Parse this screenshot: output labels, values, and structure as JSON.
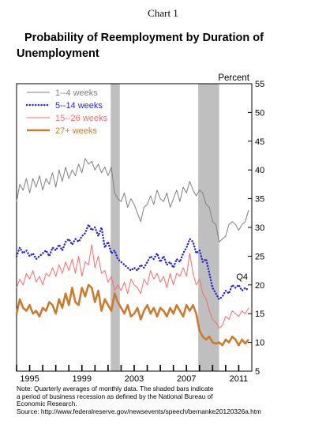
{
  "page": {
    "chart_label": "Chart 1",
    "title_line1": "Probability of Reemployment by Duration of",
    "title_line2": "Unemployment",
    "note_line1": "Note: Quarterly averages of monthly data.  The shaded bars indicate",
    "note_line2": "a period of business recession as defined by the National Bureau of",
    "note_line3": "Economic Research.",
    "source": "Source: http://www.federalreserve.gov/newsevents/speech/bernanke20120326a.htm"
  },
  "chart_data": {
    "type": "line",
    "title": "Probability of Reemployment by Duration of Unemployment",
    "ylabel": "Percent",
    "ylim": [
      5,
      55
    ],
    "yticks": [
      5,
      10,
      15,
      20,
      25,
      30,
      35,
      40,
      45,
      50,
      55
    ],
    "xlim": [
      1994.0,
      2012.0
    ],
    "xtick_labels": [
      {
        "year": 1995,
        "label": "1995"
      },
      {
        "year": 1999,
        "label": "1999"
      },
      {
        "year": 2003,
        "label": "2003"
      },
      {
        "year": 2007,
        "label": "2007"
      },
      {
        "year": 2011,
        "label": "2011"
      }
    ],
    "recessions": [
      [
        2001.2,
        2001.9
      ],
      [
        2007.9,
        2009.5
      ]
    ],
    "annotation": "Q4",
    "legend_position": "top-left",
    "colors": {
      "series1": "#7f7f7f",
      "series2": "#1f1fe0",
      "series3": "#ff6a6a",
      "series4": "#cc7a2e",
      "recession": "#bfbfbf"
    },
    "series": [
      {
        "name": "1--4 weeks",
        "color": "#7f7f7f",
        "style": "solid",
        "x": [
          1994.0,
          1994.25,
          1994.5,
          1994.75,
          1995.0,
          1995.25,
          1995.5,
          1995.75,
          1996.0,
          1996.25,
          1996.5,
          1996.75,
          1997.0,
          1997.25,
          1997.5,
          1997.75,
          1998.0,
          1998.25,
          1998.5,
          1998.75,
          1999.0,
          1999.25,
          1999.5,
          1999.75,
          2000.0,
          2000.25,
          2000.5,
          2000.75,
          2001.0,
          2001.25,
          2001.5,
          2001.75,
          2002.0,
          2002.25,
          2002.5,
          2002.75,
          2003.0,
          2003.25,
          2003.5,
          2003.75,
          2004.0,
          2004.25,
          2004.5,
          2004.75,
          2005.0,
          2005.25,
          2005.5,
          2005.75,
          2006.0,
          2006.25,
          2006.5,
          2006.75,
          2007.0,
          2007.25,
          2007.5,
          2007.75,
          2008.0,
          2008.25,
          2008.5,
          2008.75,
          2009.0,
          2009.25,
          2009.5,
          2009.75,
          2010.0,
          2010.25,
          2010.5,
          2010.75,
          2011.0,
          2011.25,
          2011.5,
          2011.75
        ],
        "values": [
          34.5,
          37.5,
          36.5,
          38.5,
          36.0,
          38.5,
          37.0,
          39.0,
          36.5,
          38.5,
          37.5,
          39.5,
          37.0,
          40.0,
          38.0,
          40.5,
          38.5,
          40.0,
          39.0,
          41.0,
          39.5,
          42.0,
          41.0,
          41.5,
          40.0,
          41.0,
          39.5,
          40.5,
          39.0,
          40.5,
          36.0,
          35.0,
          34.5,
          36.0,
          33.5,
          35.0,
          34.0,
          32.5,
          31.0,
          33.5,
          34.0,
          35.5,
          34.0,
          36.5,
          35.0,
          34.5,
          36.0,
          33.5,
          35.0,
          36.5,
          34.5,
          37.0,
          36.0,
          38.0,
          36.5,
          35.5,
          36.5,
          36.0,
          34.0,
          33.5,
          31.0,
          30.5,
          27.5,
          28.0,
          28.5,
          30.5,
          31.0,
          30.5,
          29.5,
          30.5,
          31.0,
          33.0
        ]
      },
      {
        "name": "5--14 weeks",
        "color": "#1f1fe0",
        "style": "dotted",
        "x": [
          1994.0,
          1994.25,
          1994.5,
          1994.75,
          1995.0,
          1995.25,
          1995.5,
          1995.75,
          1996.0,
          1996.25,
          1996.5,
          1996.75,
          1997.0,
          1997.25,
          1997.5,
          1997.75,
          1998.0,
          1998.25,
          1998.5,
          1998.75,
          1999.0,
          1999.25,
          1999.5,
          1999.75,
          2000.0,
          2000.25,
          2000.5,
          2000.75,
          2001.0,
          2001.25,
          2001.5,
          2001.75,
          2002.0,
          2002.25,
          2002.5,
          2002.75,
          2003.0,
          2003.25,
          2003.5,
          2003.75,
          2004.0,
          2004.25,
          2004.5,
          2004.75,
          2005.0,
          2005.25,
          2005.5,
          2005.75,
          2006.0,
          2006.25,
          2006.5,
          2006.75,
          2007.0,
          2007.25,
          2007.5,
          2007.75,
          2008.0,
          2008.25,
          2008.5,
          2008.75,
          2009.0,
          2009.25,
          2009.5,
          2009.75,
          2010.0,
          2010.25,
          2010.5,
          2010.75,
          2011.0,
          2011.25,
          2011.5,
          2011.75
        ],
        "values": [
          25.0,
          26.5,
          25.5,
          26.0,
          25.0,
          25.5,
          24.5,
          25.0,
          25.5,
          26.0,
          25.0,
          26.5,
          26.0,
          27.0,
          26.0,
          27.5,
          28.0,
          27.0,
          28.0,
          27.5,
          28.5,
          29.0,
          30.5,
          29.5,
          30.0,
          28.5,
          30.0,
          26.5,
          27.5,
          25.5,
          26.0,
          24.5,
          24.0,
          23.5,
          23.0,
          22.5,
          23.0,
          22.5,
          23.5,
          23.0,
          24.0,
          25.0,
          24.5,
          25.5,
          24.0,
          25.0,
          23.5,
          24.0,
          23.0,
          24.5,
          24.0,
          25.5,
          26.5,
          28.0,
          27.5,
          25.5,
          26.0,
          24.0,
          24.5,
          22.0,
          19.5,
          18.5,
          17.5,
          18.0,
          19.0,
          18.5,
          20.0,
          19.5,
          20.0,
          19.0,
          19.5,
          19.0
        ]
      },
      {
        "name": "15--26 weeks",
        "color": "#ff6a6a",
        "style": "solid",
        "x": [
          1994.0,
          1994.25,
          1994.5,
          1994.75,
          1995.0,
          1995.25,
          1995.5,
          1995.75,
          1996.0,
          1996.25,
          1996.5,
          1996.75,
          1997.0,
          1997.25,
          1997.5,
          1997.75,
          1998.0,
          1998.25,
          1998.5,
          1998.75,
          1999.0,
          1999.25,
          1999.5,
          1999.75,
          2000.0,
          2000.25,
          2000.5,
          2000.75,
          2001.0,
          2001.25,
          2001.5,
          2001.75,
          2002.0,
          2002.25,
          2002.5,
          2002.75,
          2003.0,
          2003.25,
          2003.5,
          2003.75,
          2004.0,
          2004.25,
          2004.5,
          2004.75,
          2005.0,
          2005.25,
          2005.5,
          2005.75,
          2006.0,
          2006.25,
          2006.5,
          2006.75,
          2007.0,
          2007.25,
          2007.5,
          2007.75,
          2008.0,
          2008.25,
          2008.5,
          2008.75,
          2009.0,
          2009.25,
          2009.5,
          2009.75,
          2010.0,
          2010.25,
          2010.5,
          2010.75,
          2011.0,
          2011.25,
          2011.5,
          2011.75
        ],
        "values": [
          19.5,
          21.0,
          20.0,
          22.0,
          21.0,
          22.5,
          20.5,
          21.5,
          20.0,
          22.0,
          21.5,
          23.0,
          21.5,
          23.5,
          22.0,
          24.0,
          22.5,
          24.5,
          22.0,
          25.0,
          21.5,
          24.0,
          23.5,
          27.0,
          23.0,
          25.0,
          22.0,
          22.5,
          20.5,
          21.5,
          19.0,
          20.0,
          19.0,
          20.5,
          18.5,
          21.0,
          20.0,
          19.5,
          18.5,
          21.0,
          20.0,
          22.5,
          21.0,
          22.0,
          20.5,
          21.5,
          19.5,
          22.0,
          20.0,
          22.0,
          21.5,
          23.0,
          21.5,
          25.5,
          22.0,
          20.0,
          21.0,
          18.5,
          17.5,
          15.5,
          14.0,
          13.5,
          12.5,
          13.0,
          14.5,
          14.0,
          15.5,
          15.0,
          14.5,
          15.5,
          15.0,
          16.0
        ]
      },
      {
        "name": "27+ weeks",
        "color": "#cc7a2e",
        "style": "solid-thick",
        "x": [
          1994.0,
          1994.25,
          1994.5,
          1994.75,
          1995.0,
          1995.25,
          1995.5,
          1995.75,
          1996.0,
          1996.25,
          1996.5,
          1996.75,
          1997.0,
          1997.25,
          1997.5,
          1997.75,
          1998.0,
          1998.25,
          1998.5,
          1998.75,
          1999.0,
          1999.25,
          1999.5,
          1999.75,
          2000.0,
          2000.25,
          2000.5,
          2000.75,
          2001.0,
          2001.25,
          2001.5,
          2001.75,
          2002.0,
          2002.25,
          2002.5,
          2002.75,
          2003.0,
          2003.25,
          2003.5,
          2003.75,
          2004.0,
          2004.25,
          2004.5,
          2004.75,
          2005.0,
          2005.25,
          2005.5,
          2005.75,
          2006.0,
          2006.25,
          2006.5,
          2006.75,
          2007.0,
          2007.25,
          2007.5,
          2007.75,
          2008.0,
          2008.25,
          2008.5,
          2008.75,
          2009.0,
          2009.25,
          2009.5,
          2009.75,
          2010.0,
          2010.25,
          2010.5,
          2010.75,
          2011.0,
          2011.25,
          2011.5,
          2011.75
        ],
        "values": [
          15.0,
          17.5,
          16.0,
          15.5,
          16.5,
          15.0,
          15.5,
          14.5,
          16.0,
          15.5,
          17.0,
          16.5,
          15.0,
          17.5,
          16.0,
          18.5,
          16.5,
          19.5,
          17.0,
          16.5,
          19.5,
          18.0,
          20.0,
          19.5,
          17.0,
          19.0,
          15.5,
          17.5,
          16.5,
          15.5,
          18.5,
          17.0,
          16.0,
          15.0,
          16.5,
          14.5,
          15.0,
          16.0,
          14.0,
          15.5,
          16.5,
          15.0,
          16.0,
          14.5,
          16.0,
          15.5,
          14.5,
          16.0,
          15.0,
          16.5,
          15.5,
          14.5,
          16.5,
          15.5,
          16.5,
          15.0,
          12.0,
          11.0,
          10.5,
          11.0,
          10.0,
          9.8,
          10.0,
          9.5,
          10.5,
          10.0,
          11.0,
          10.5,
          9.5,
          10.5,
          9.8,
          10.5
        ]
      }
    ]
  }
}
